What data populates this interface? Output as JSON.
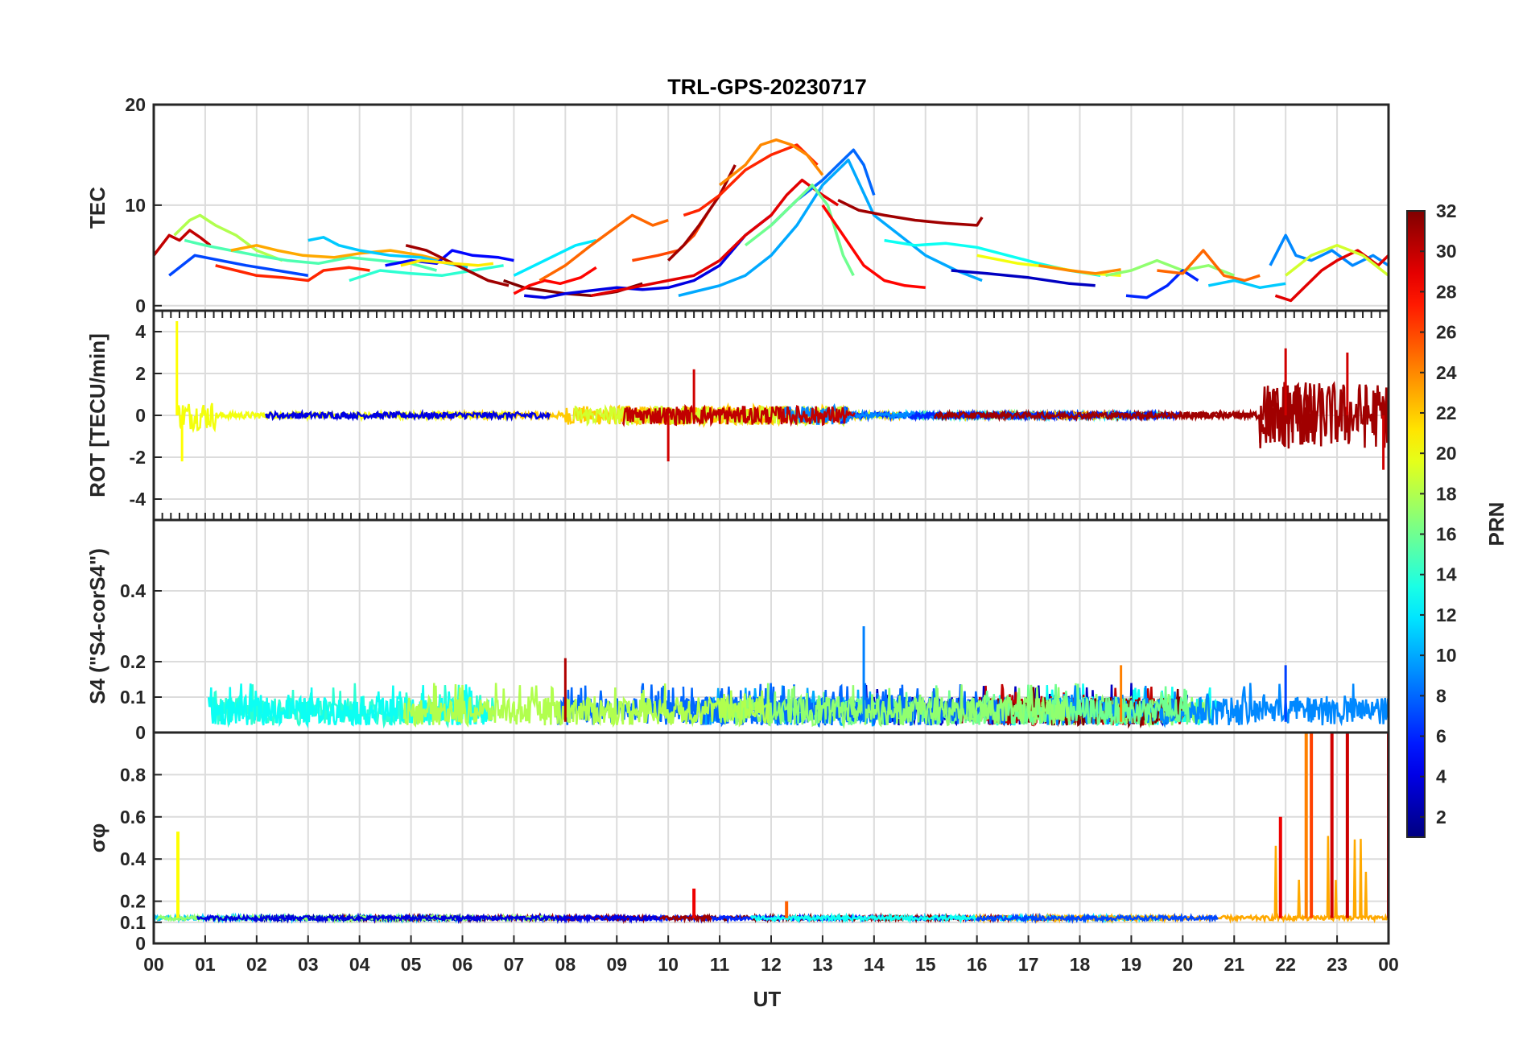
{
  "chart_data": {
    "type": "line",
    "title": "TRL-GPS-20230717",
    "xlabel": "UT",
    "x_unit": "hour UT",
    "x_range": [
      0,
      24
    ],
    "x_ticks": [
      "00",
      "01",
      "02",
      "03",
      "04",
      "05",
      "06",
      "07",
      "08",
      "09",
      "10",
      "11",
      "12",
      "13",
      "14",
      "15",
      "16",
      "17",
      "18",
      "19",
      "20",
      "21",
      "22",
      "23",
      "00"
    ],
    "grid": true,
    "colorbar": {
      "label": "PRN",
      "range": [
        1,
        32
      ],
      "ticks": [
        "2",
        "4",
        "6",
        "8",
        "10",
        "12",
        "14",
        "16",
        "18",
        "20",
        "22",
        "24",
        "26",
        "28",
        "30",
        "32"
      ],
      "colormap": "jet",
      "placement": "right"
    },
    "panels": [
      {
        "ylabel": "TEC",
        "ylim": [
          -0.5,
          20
        ],
        "yticks": [
          "0",
          "10",
          "20"
        ],
        "series": [
          {
            "prn": 30,
            "x": [
              0,
              0.3,
              0.5,
              0.7,
              0.9,
              1.1
            ],
            "y": [
              5,
              7,
              6.5,
              7.5,
              6.8,
              6
            ]
          },
          {
            "prn": 18,
            "x": [
              0.4,
              0.7,
              0.9,
              1.2,
              1.6,
              2.0,
              2.5
            ],
            "y": [
              7,
              8.5,
              9,
              8,
              7,
              5.5,
              4.5
            ]
          },
          {
            "prn": 15,
            "x": [
              0.6,
              1.0,
              1.5,
              2.0,
              2.6,
              3.2,
              3.8,
              4.4,
              5.0,
              5.5
            ],
            "y": [
              6.5,
              6,
              5.5,
              5,
              4.5,
              4.2,
              4.8,
              4.5,
              4.2,
              3.5
            ]
          },
          {
            "prn": 7,
            "x": [
              0.3,
              0.8,
              1.3,
              1.8,
              2.4,
              3.0
            ],
            "y": [
              3,
              5,
              4.5,
              4,
              3.5,
              3
            ]
          },
          {
            "prn": 27,
            "x": [
              1.2,
              1.6,
              2.0,
              2.5,
              3.0,
              3.3,
              3.8,
              4.2
            ],
            "y": [
              4,
              3.5,
              3,
              2.8,
              2.5,
              3.5,
              3.8,
              3.5
            ]
          },
          {
            "prn": 23,
            "x": [
              1.5,
              2.0,
              2.4,
              2.9,
              3.5,
              4.0,
              4.6,
              5.2,
              5.6
            ],
            "y": [
              5.5,
              6,
              5.5,
              5,
              4.8,
              5.2,
              5.5,
              5,
              4.5
            ]
          },
          {
            "prn": 11,
            "x": [
              3.0,
              3.3,
              3.6,
              4.0,
              4.6,
              5.2,
              5.7,
              6.1
            ],
            "y": [
              6.5,
              6.8,
              6,
              5.5,
              5,
              4.8,
              4.2,
              3.8
            ]
          },
          {
            "prn": 14,
            "x": [
              3.8,
              4.4,
              5.0,
              5.6,
              6.2,
              6.8
            ],
            "y": [
              2.5,
              3.5,
              3.2,
              3.0,
              3.5,
              4.0
            ]
          },
          {
            "prn": 5,
            "x": [
              4.5,
              5.0,
              5.5,
              5.8,
              6.2,
              6.7,
              7.0
            ],
            "y": [
              4,
              4.5,
              4.2,
              5.5,
              5,
              4.8,
              4.5
            ]
          },
          {
            "prn": 31,
            "x": [
              4.9,
              5.3,
              5.7,
              6.1,
              6.5,
              6.9
            ],
            "y": [
              6,
              5.5,
              4.5,
              3.5,
              2.5,
              2
            ]
          },
          {
            "prn": 21,
            "x": [
              4.8,
              5.2,
              5.8,
              6.3,
              6.6
            ],
            "y": [
              4,
              4.5,
              4.2,
              4.0,
              4.2
            ]
          },
          {
            "prn": 32,
            "x": [
              6.8,
              7.2,
              7.6,
              8.0,
              8.5,
              9.0,
              9.5
            ],
            "y": [
              2.5,
              1.8,
              1.5,
              1.2,
              1,
              1.4,
              2.2
            ]
          },
          {
            "prn": 28,
            "x": [
              7.0,
              7.3,
              7.6,
              7.9,
              8.3,
              8.6
            ],
            "y": [
              1.2,
              2,
              2.5,
              2.2,
              2.8,
              3.8
            ]
          },
          {
            "prn": 4,
            "x": [
              7.2,
              7.6,
              8.0,
              8.5,
              9.0,
              9.5,
              10.0,
              10.5,
              11.0,
              11.5,
              12.0
            ],
            "y": [
              1,
              0.8,
              1.2,
              1.5,
              1.8,
              1.6,
              1.8,
              2.5,
              4,
              7,
              9
            ]
          },
          {
            "prn": 12,
            "x": [
              7.0,
              7.4,
              7.8,
              8.2,
              8.6
            ],
            "y": [
              3,
              4,
              5,
              6,
              6.5
            ]
          },
          {
            "prn": 25,
            "x": [
              7.5,
              8.0,
              8.5,
              8.9,
              9.3,
              9.7,
              10.0
            ],
            "y": [
              2.5,
              4,
              6,
              7.5,
              9,
              8,
              8.5
            ]
          },
          {
            "prn": 29,
            "x": [
              8.5,
              9.0,
              9.5,
              10.0,
              10.5,
              11.0,
              11.5,
              12.0,
              12.3,
              12.6,
              13.0,
              13.3
            ],
            "y": [
              1,
              1.5,
              2,
              2.5,
              3,
              4.5,
              7,
              9,
              11,
              12.5,
              11,
              10
            ]
          },
          {
            "prn": 26,
            "x": [
              9.3,
              9.8,
              10.2,
              10.5,
              10.8
            ],
            "y": [
              4.5,
              5,
              5.5,
              7,
              9.5
            ]
          },
          {
            "prn": 31,
            "x": [
              10.0,
              10.3,
              10.6,
              11.0,
              11.3
            ],
            "y": [
              4.5,
              6,
              8,
              11,
              14
            ]
          },
          {
            "prn": 27,
            "x": [
              10.3,
              10.6,
              11.0,
              11.5,
              12.0,
              12.5,
              12.9
            ],
            "y": [
              9,
              9.5,
              11,
              13.5,
              15,
              16,
              14
            ]
          },
          {
            "prn": 24,
            "x": [
              11.0,
              11.5,
              11.8,
              12.1,
              12.4,
              12.7,
              13.0
            ],
            "y": [
              12,
              14,
              16,
              16.5,
              16,
              15,
              13
            ]
          },
          {
            "prn": 10,
            "x": [
              10.2,
              10.6,
              11.0,
              11.5,
              12.0,
              12.5,
              13.0,
              13.5,
              14.0,
              14.5,
              15.0,
              15.6,
              16.1
            ],
            "y": [
              1,
              1.5,
              2,
              3,
              5,
              8,
              12,
              14.5,
              9,
              7,
              5,
              3.5,
              2.5
            ]
          },
          {
            "prn": 8,
            "x": [
              12.0,
              12.5,
              13.0,
              13.3,
              13.6,
              13.8,
              14.0
            ],
            "y": [
              8,
              10.5,
              12.5,
              14,
              15.5,
              14,
              11
            ]
          },
          {
            "prn": 16,
            "x": [
              11.5,
              12.0,
              12.5,
              12.8,
              13.1,
              13.4,
              13.6
            ],
            "y": [
              6,
              8,
              10.5,
              12,
              10,
              5,
              3
            ]
          },
          {
            "prn": 28,
            "x": [
              13.0,
              13.4,
              13.8,
              14.2,
              14.6,
              15.0
            ],
            "y": [
              10,
              7,
              4,
              2.5,
              2,
              1.8
            ]
          },
          {
            "prn": 31,
            "x": [
              13.3,
              13.7,
              14.2,
              14.8,
              15.4,
              16.0,
              16.1
            ],
            "y": [
              10.5,
              9.5,
              9,
              8.5,
              8.2,
              8,
              8.8
            ]
          },
          {
            "prn": 13,
            "x": [
              14.2,
              14.8,
              15.4,
              16.0,
              16.6,
              17.2,
              17.8,
              18.4
            ],
            "y": [
              6.5,
              6,
              6.2,
              5.8,
              5,
              4.2,
              3.5,
              3
            ]
          },
          {
            "prn": 3,
            "x": [
              15.5,
              16.2,
              17.0,
              17.8,
              18.3
            ],
            "y": [
              3.5,
              3.2,
              2.8,
              2.2,
              2
            ]
          },
          {
            "prn": 20,
            "x": [
              16.0,
              16.8,
              17.5,
              18.2,
              18.8
            ],
            "y": [
              5,
              4.2,
              3.8,
              3.2,
              3
            ]
          },
          {
            "prn": 24,
            "x": [
              17.2,
              17.8,
              18.3,
              18.8
            ],
            "y": [
              4,
              3.5,
              3.2,
              3.6
            ]
          },
          {
            "prn": 17,
            "x": [
              18.5,
              19.0,
              19.5,
              20.0,
              20.5,
              21.0
            ],
            "y": [
              3,
              3.5,
              4.5,
              3.5,
              4,
              3
            ]
          },
          {
            "prn": 6,
            "x": [
              18.9,
              19.3,
              19.7,
              20.0,
              20.3
            ],
            "y": [
              1,
              0.8,
              2,
              3.5,
              2.5
            ]
          },
          {
            "prn": 25,
            "x": [
              19.5,
              20.0,
              20.4,
              20.8,
              21.2,
              21.5
            ],
            "y": [
              3.5,
              3.2,
              5.5,
              3,
              2.5,
              3
            ]
          },
          {
            "prn": 11,
            "x": [
              20.5,
              21.0,
              21.5,
              22.0
            ],
            "y": [
              2,
              2.5,
              1.8,
              2.2
            ]
          },
          {
            "prn": 9,
            "x": [
              21.7,
              22.0,
              22.2,
              22.5,
              22.9,
              23.3,
              23.7,
              24.0
            ],
            "y": [
              4,
              7,
              5,
              4.5,
              5.5,
              4,
              5,
              4
            ]
          },
          {
            "prn": 29,
            "x": [
              21.8,
              22.1,
              22.4,
              22.7,
              23.0,
              23.4,
              23.8,
              24.0
            ],
            "y": [
              1,
              0.5,
              2,
              3.5,
              4.5,
              5.5,
              4,
              5
            ]
          },
          {
            "prn": 19,
            "x": [
              22.0,
              22.5,
              23.0,
              23.5,
              24.0
            ],
            "y": [
              3,
              5,
              6,
              5,
              3
            ]
          }
        ]
      },
      {
        "ylabel": "ROT [TECU/min]",
        "ylim": [
          -5,
          5
        ],
        "yticks": [
          "-4",
          "-2",
          "0",
          "2",
          "4"
        ],
        "note": "dense noisy traces around 0, with bursts near 00:30, 08-13 UT and 21.5-24 UT"
      },
      {
        "ylabel": "S4 (\"S4-corS4\")",
        "ylim": [
          0,
          0.6
        ],
        "yticks": [
          "0",
          "0.1",
          "0.2",
          "0.4"
        ],
        "note": "mostly 0.02-0.12, spike ~0.3 near 13.8 UT, ~0.2 near 08:00 and 22:00"
      },
      {
        "ylabel": "σφ",
        "ylim": [
          0,
          1
        ],
        "yticks": [
          "0",
          "0.1",
          "0.2",
          "0.4",
          "0.6",
          "0.8"
        ],
        "note": "baseline ~0.12, spikes 0.53 near 00:30, 0.25 near 10:30, saturating near 22-24 UT"
      }
    ]
  }
}
